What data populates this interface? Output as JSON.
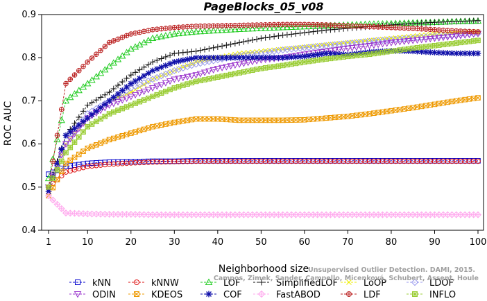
{
  "chart_data": {
    "type": "line",
    "title": "PageBlocks_05_v08",
    "xlabel": "Neighborhood size",
    "ylabel": "ROC AUC",
    "xlim": [
      1,
      100
    ],
    "ylim": [
      0.4,
      0.9
    ],
    "x_ticks": [
      1,
      10,
      20,
      30,
      40,
      50,
      60,
      70,
      80,
      90,
      100
    ],
    "y_ticks": [
      0.4,
      0.5,
      0.6,
      0.7,
      0.8,
      0.9
    ],
    "grid": false,
    "legend_position": "bottom",
    "x": [
      1,
      5,
      10,
      15,
      20,
      25,
      30,
      35,
      40,
      45,
      50,
      55,
      60,
      65,
      70,
      75,
      80,
      85,
      90,
      95,
      100
    ],
    "series": [
      {
        "name": "kNN",
        "color": "#0000cc",
        "marker": "square",
        "values": [
          0.53,
          0.548,
          0.555,
          0.558,
          0.559,
          0.56,
          0.56,
          0.561,
          0.561,
          0.561,
          0.561,
          0.561,
          0.561,
          0.561,
          0.561,
          0.561,
          0.561,
          0.561,
          0.561,
          0.561,
          0.561
        ]
      },
      {
        "name": "kNNW",
        "color": "#dd1111",
        "marker": "circle",
        "values": [
          0.5,
          0.535,
          0.548,
          0.553,
          0.556,
          0.558,
          0.559,
          0.56,
          0.56,
          0.56,
          0.56,
          0.56,
          0.56,
          0.56,
          0.56,
          0.56,
          0.56,
          0.56,
          0.56,
          0.56,
          0.56
        ]
      },
      {
        "name": "LOF",
        "color": "#22cc22",
        "marker": "triangle-up",
        "values": [
          0.52,
          0.7,
          0.74,
          0.78,
          0.82,
          0.845,
          0.855,
          0.86,
          0.863,
          0.866,
          0.868,
          0.87,
          0.872,
          0.874,
          0.876,
          0.878,
          0.879,
          0.881,
          0.882,
          0.884,
          0.885
        ]
      },
      {
        "name": "SimplifiedLOF",
        "color": "#111111",
        "marker": "plus",
        "values": [
          0.5,
          0.62,
          0.69,
          0.72,
          0.76,
          0.79,
          0.81,
          0.815,
          0.825,
          0.835,
          0.845,
          0.852,
          0.858,
          0.864,
          0.868,
          0.872,
          0.876,
          0.879,
          0.882,
          0.884,
          0.886
        ]
      },
      {
        "name": "LoOP",
        "color": "#eeee00",
        "marker": "cross",
        "values": [
          0.5,
          0.6,
          0.66,
          0.7,
          0.72,
          0.75,
          0.77,
          0.79,
          0.8,
          0.81,
          0.815,
          0.82,
          0.825,
          0.83,
          0.835,
          0.84,
          0.845,
          0.85,
          0.855,
          0.858,
          0.86
        ]
      },
      {
        "name": "LDOF",
        "color": "#9999ee",
        "marker": "diamond",
        "values": [
          0.5,
          0.6,
          0.67,
          0.7,
          0.73,
          0.75,
          0.77,
          0.785,
          0.795,
          0.805,
          0.81,
          0.818,
          0.823,
          0.828,
          0.833,
          0.838,
          0.842,
          0.846,
          0.85,
          0.853,
          0.856
        ]
      },
      {
        "name": "ODIN",
        "color": "#9933cc",
        "marker": "triangle-down",
        "values": [
          0.5,
          0.6,
          0.66,
          0.69,
          0.71,
          0.73,
          0.75,
          0.76,
          0.775,
          0.785,
          0.795,
          0.8,
          0.808,
          0.815,
          0.822,
          0.828,
          0.835,
          0.84,
          0.845,
          0.85,
          0.856
        ]
      },
      {
        "name": "KDEOS",
        "color": "#ee9900",
        "marker": "square-x",
        "values": [
          0.48,
          0.555,
          0.59,
          0.61,
          0.625,
          0.64,
          0.65,
          0.658,
          0.658,
          0.655,
          0.655,
          0.655,
          0.656,
          0.66,
          0.664,
          0.67,
          0.677,
          0.684,
          0.692,
          0.7,
          0.707
        ]
      },
      {
        "name": "COF",
        "color": "#1111aa",
        "marker": "asterisk",
        "values": [
          0.49,
          0.62,
          0.66,
          0.7,
          0.74,
          0.77,
          0.79,
          0.8,
          0.8,
          0.8,
          0.8,
          0.8,
          0.803,
          0.81,
          0.807,
          0.813,
          0.816,
          0.815,
          0.812,
          0.81,
          0.81
        ]
      },
      {
        "name": "FastABOD",
        "color": "#ffaaee",
        "marker": "diamond-plus",
        "values": [
          0.48,
          0.44,
          0.438,
          0.437,
          0.437,
          0.436,
          0.436,
          0.436,
          0.436,
          0.436,
          0.436,
          0.436,
          0.436,
          0.436,
          0.436,
          0.436,
          0.436,
          0.436,
          0.436,
          0.436,
          0.436
        ]
      },
      {
        "name": "LDF",
        "color": "#bb2222",
        "marker": "circle-plus",
        "values": [
          0.5,
          0.74,
          0.79,
          0.835,
          0.855,
          0.865,
          0.87,
          0.873,
          0.874,
          0.875,
          0.876,
          0.877,
          0.877,
          0.876,
          0.874,
          0.872,
          0.87,
          0.868,
          0.865,
          0.862,
          0.86
        ]
      },
      {
        "name": "INFLO",
        "color": "#99cc33",
        "marker": "square-star",
        "values": [
          0.5,
          0.58,
          0.64,
          0.67,
          0.69,
          0.71,
          0.73,
          0.745,
          0.755,
          0.765,
          0.775,
          0.782,
          0.79,
          0.797,
          0.803,
          0.808,
          0.815,
          0.822,
          0.828,
          0.834,
          0.84
        ]
      }
    ],
    "legend_rows": [
      [
        "kNN",
        "kNNW",
        "LOF",
        "SimplifiedLOF",
        "LoOP",
        "LDOF"
      ],
      [
        "ODIN",
        "KDEOS",
        "COF",
        "FastABOD",
        "LDF",
        "INFLO"
      ]
    ],
    "watermark": [
      "Unsupervised Outlier Detection. DAMI, 2015.",
      "Campos, Zimek, Sander, Campello, Micenková, Schubert, Assent, Houle"
    ]
  }
}
